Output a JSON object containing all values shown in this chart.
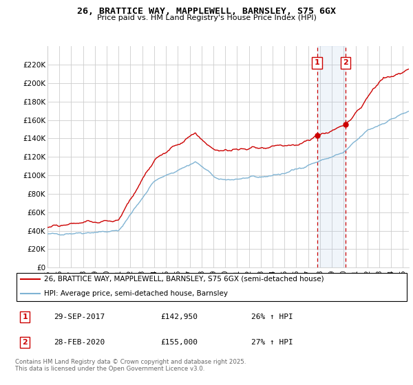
{
  "title": "26, BRATTICE WAY, MAPPLEWELL, BARNSLEY, S75 6GX",
  "subtitle": "Price paid vs. HM Land Registry's House Price Index (HPI)",
  "ylabel_ticks": [
    "£0",
    "£20K",
    "£40K",
    "£60K",
    "£80K",
    "£100K",
    "£120K",
    "£140K",
    "£160K",
    "£180K",
    "£200K",
    "£220K"
  ],
  "ylim": [
    0,
    240000
  ],
  "ytick_vals": [
    0,
    20000,
    40000,
    60000,
    80000,
    100000,
    120000,
    140000,
    160000,
    180000,
    200000,
    220000
  ],
  "x_start_year": 1995,
  "x_end_year": 2025,
  "vline1_year": 2017.75,
  "vline2_year": 2020.17,
  "vline1_label": "1",
  "vline2_label": "2",
  "sale1_date": "29-SEP-2017",
  "sale1_price": "£142,950",
  "sale1_hpi": "26% ↑ HPI",
  "sale2_date": "28-FEB-2020",
  "sale2_price": "£155,000",
  "sale2_hpi": "27% ↑ HPI",
  "legend_red": "26, BRATTICE WAY, MAPPLEWELL, BARNSLEY, S75 6GX (semi-detached house)",
  "legend_blue": "HPI: Average price, semi-detached house, Barnsley",
  "footnote": "Contains HM Land Registry data © Crown copyright and database right 2025.\nThis data is licensed under the Open Government Licence v3.0.",
  "red_color": "#cc0000",
  "blue_color": "#7fb3d3",
  "background_color": "#ffffff",
  "grid_color": "#cccccc",
  "shade_color": "#ddeeff"
}
